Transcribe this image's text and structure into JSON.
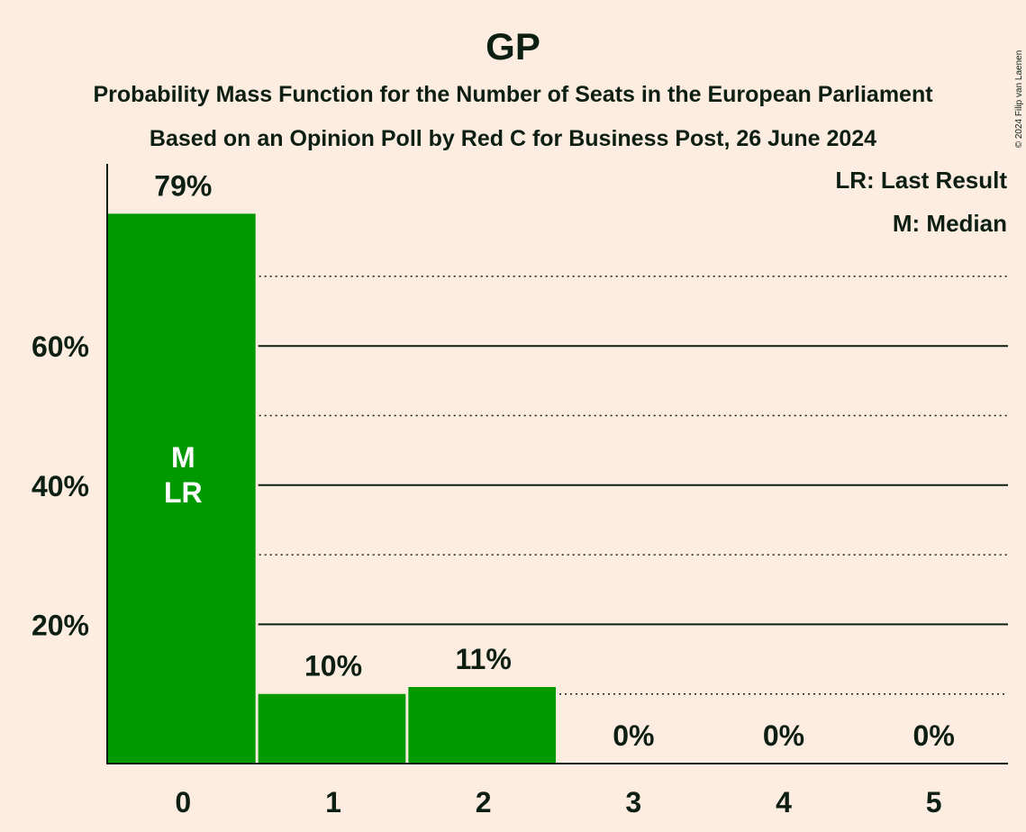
{
  "chart_data": {
    "type": "bar",
    "title": "GP",
    "subtitle_lines": [
      "Probability Mass Function for the Number of Seats in the European Parliament",
      "Based on an Opinion Poll by Red C for Business Post, 26 June 2024"
    ],
    "categories": [
      "0",
      "1",
      "2",
      "3",
      "4",
      "5"
    ],
    "values": [
      79,
      10,
      11,
      0,
      0,
      0
    ],
    "data_labels": [
      "79%",
      "10%",
      "11%",
      "0%",
      "0%",
      "0%"
    ],
    "ylim": [
      0,
      86
    ],
    "y_ticks": [
      {
        "value": 20,
        "label": "20%"
      },
      {
        "value": 40,
        "label": "40%"
      },
      {
        "value": 60,
        "label": "60%"
      }
    ],
    "y_minor_gridlines": [
      10,
      30,
      50,
      70
    ],
    "bar_color": "#009900",
    "grid": true,
    "legend_position": "top-right",
    "legend": [
      "LR: Last Result",
      "M: Median"
    ],
    "bar_markers": {
      "category": "0",
      "lines": [
        "M",
        "LR"
      ]
    },
    "copyright": "© 2024 Filip van Laenen"
  }
}
